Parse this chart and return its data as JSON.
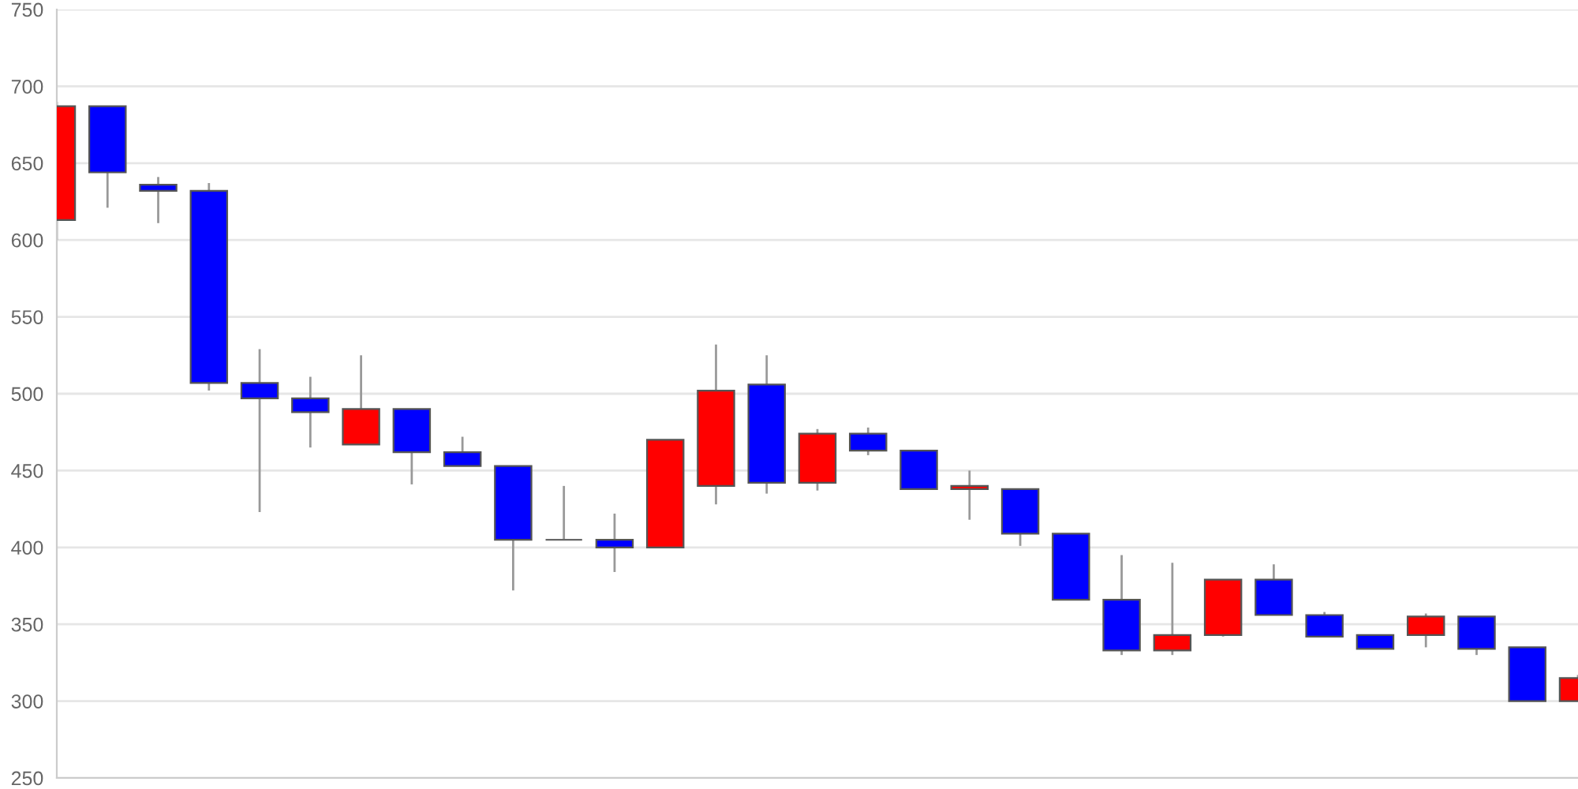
{
  "chart_data": {
    "type": "candlestick",
    "categories": [
      null,
      null,
      null,
      null,
      null,
      null,
      null,
      null,
      null,
      null,
      null,
      null,
      null,
      null,
      null,
      null,
      null,
      null,
      null,
      null,
      null,
      null,
      null,
      null,
      null,
      null,
      null,
      null,
      null,
      null,
      null
    ],
    "ohlc": [
      [
        613,
        690,
        600,
        687
      ],
      [
        687,
        687,
        621,
        644
      ],
      [
        636,
        641,
        611,
        632
      ],
      [
        632,
        637,
        502,
        507
      ],
      [
        507,
        529,
        423,
        497
      ],
      [
        497,
        511,
        465,
        488
      ],
      [
        467,
        525,
        467,
        490
      ],
      [
        490,
        490,
        441,
        462
      ],
      [
        462,
        472,
        453,
        453
      ],
      [
        453,
        453,
        372,
        405
      ],
      [
        405,
        440,
        405,
        405
      ],
      [
        405,
        422,
        384,
        400
      ],
      [
        400,
        470,
        400,
        470
      ],
      [
        440,
        532,
        428,
        502
      ],
      [
        506,
        525,
        435,
        442
      ],
      [
        442,
        477,
        437,
        474
      ],
      [
        474,
        478,
        460,
        463
      ],
      [
        463,
        463,
        438,
        438
      ],
      [
        438,
        450,
        418,
        440
      ],
      [
        438,
        438,
        401,
        409
      ],
      [
        409,
        409,
        366,
        366
      ],
      [
        366,
        395,
        330,
        333
      ],
      [
        333,
        390,
        330,
        343
      ],
      [
        343,
        379,
        342,
        379
      ],
      [
        379,
        389,
        356,
        356
      ],
      [
        356,
        358,
        342,
        342
      ],
      [
        343,
        343,
        334,
        334
      ],
      [
        343,
        357,
        335,
        355
      ],
      [
        355,
        355,
        330,
        334
      ],
      [
        335,
        335,
        300,
        300
      ],
      [
        300,
        317,
        300,
        315
      ]
    ],
    "colors": [
      "#ff0000",
      "#0000ff",
      "#0000ff",
      "#0000ff",
      "#0000ff",
      "#0000ff",
      "#ff0000",
      "#0000ff",
      "#0000ff",
      "#0000ff",
      "#666666",
      "#0000ff",
      "#ff0000",
      "#ff0000",
      "#0000ff",
      "#ff0000",
      "#0000ff",
      "#0000ff",
      "#ff0000",
      "#0000ff",
      "#0000ff",
      "#0000ff",
      "#ff0000",
      "#ff0000",
      "#0000ff",
      "#0000ff",
      "#0000ff",
      "#ff0000",
      "#0000ff",
      "#0000ff",
      "#ff0000"
    ],
    "ylim": [
      250,
      750
    ],
    "yticks": [
      250,
      300,
      350,
      400,
      450,
      500,
      550,
      600,
      650,
      700,
      750
    ],
    "grid": "y",
    "tick_labels": "y"
  }
}
